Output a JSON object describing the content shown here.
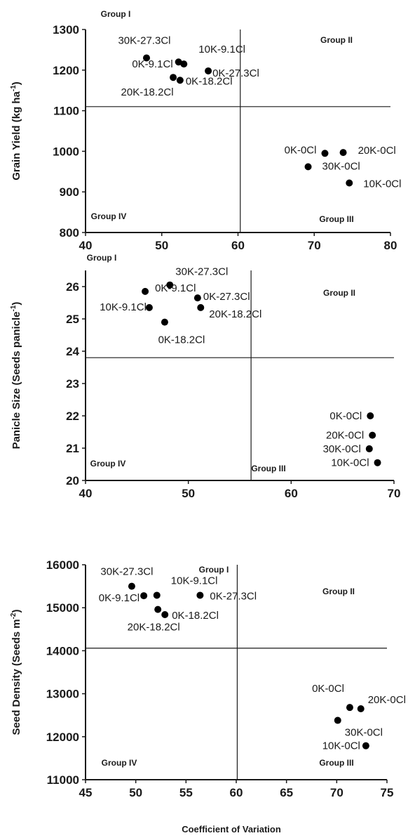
{
  "figure": {
    "xlabel": "Coefficient of Variation"
  },
  "chart_data": [
    {
      "type": "scatter",
      "title": "",
      "ylabel": "Grain Yield (kg ha",
      "ylabel_sup": "-1",
      "ylabel_tail": ")",
      "xlim": [
        40,
        80
      ],
      "xticks": [
        40,
        50,
        60,
        70,
        80
      ],
      "ylim": [
        800,
        1300
      ],
      "yticks": [
        800,
        900,
        1000,
        1100,
        1200,
        1300
      ],
      "ref_lines": {
        "x": 60.3,
        "y": 1110
      },
      "groups": [
        "Group I",
        "Group II",
        "Group III",
        "Group IV"
      ],
      "points": [
        {
          "label": "30K-27.3Cl",
          "x": 48.0,
          "y": 1230
        },
        {
          "label": "10K-9.1Cl",
          "x": 52.9,
          "y": 1215
        },
        {
          "label": "0K-9.1Cl",
          "x": 52.2,
          "y": 1220
        },
        {
          "label": "0K-27.3Cl",
          "x": 56.1,
          "y": 1198
        },
        {
          "label": "0K-18.2Cl",
          "x": 52.4,
          "y": 1175
        },
        {
          "label": "20K-18.2Cl",
          "x": 51.5,
          "y": 1182
        },
        {
          "label": "0K-0Cl",
          "x": 71.4,
          "y": 995
        },
        {
          "label": "20K-0Cl",
          "x": 73.8,
          "y": 997
        },
        {
          "label": "30K-0Cl",
          "x": 69.2,
          "y": 962
        },
        {
          "label": "10K-0Cl",
          "x": 74.6,
          "y": 922
        }
      ]
    },
    {
      "type": "scatter",
      "title": "",
      "ylabel": "Panicle Size (Seeds panicle",
      "ylabel_sup": "-1",
      "ylabel_tail": ")",
      "xlim": [
        40,
        70
      ],
      "xticks": [
        40,
        50,
        60,
        70
      ],
      "ylim": [
        20,
        26.5
      ],
      "yticks": [
        20,
        21,
        22,
        23,
        24,
        25,
        26
      ],
      "ref_lines": {
        "x": 56.1,
        "y": 23.8
      },
      "groups": [
        "Group I",
        "Group II",
        "Group III",
        "Group IV"
      ],
      "points": [
        {
          "label": "30K-27.3Cl",
          "x": 48.2,
          "y": 26.05
        },
        {
          "label": "0K-9.1Cl",
          "x": 45.8,
          "y": 25.85
        },
        {
          "label": "10K-9.1Cl",
          "x": 46.2,
          "y": 25.35
        },
        {
          "label": "0K-27.3Cl",
          "x": 50.9,
          "y": 25.65
        },
        {
          "label": "20K-18.2Cl",
          "x": 51.2,
          "y": 25.35
        },
        {
          "label": "0K-18.2Cl",
          "x": 47.7,
          "y": 24.9
        },
        {
          "label": "0K-0Cl",
          "x": 67.7,
          "y": 22.0
        },
        {
          "label": "20K-0Cl",
          "x": 67.9,
          "y": 21.4
        },
        {
          "label": "30K-0Cl",
          "x": 67.6,
          "y": 20.98
        },
        {
          "label": "10K-0Cl",
          "x": 68.4,
          "y": 20.55
        }
      ]
    },
    {
      "type": "scatter",
      "title": "",
      "ylabel": "Seed Density (Seeds m",
      "ylabel_sup": "-2",
      "ylabel_tail": ")",
      "xlim": [
        45,
        75
      ],
      "xticks": [
        45,
        50,
        55,
        60,
        65,
        70,
        75
      ],
      "ylim": [
        11000,
        16000
      ],
      "yticks": [
        11000,
        12000,
        13000,
        14000,
        15000,
        16000
      ],
      "ref_lines": {
        "x": 60.1,
        "y": 14060
      },
      "groups": [
        "Group I",
        "Group II",
        "Group III",
        "Group IV"
      ],
      "points": [
        {
          "label": "30K-27.3Cl",
          "x": 49.6,
          "y": 15500
        },
        {
          "label": "0K-9.1Cl",
          "x": 50.8,
          "y": 15280
        },
        {
          "label": "10K-9.1Cl",
          "x": 52.1,
          "y": 15290
        },
        {
          "label": "0K-27.3Cl",
          "x": 56.4,
          "y": 15290
        },
        {
          "label": "20K-18.2Cl",
          "x": 52.2,
          "y": 14960
        },
        {
          "label": "0K-18.2Cl",
          "x": 52.9,
          "y": 14840
        },
        {
          "label": "0K-0Cl",
          "x": 71.3,
          "y": 12680
        },
        {
          "label": "20K-0Cl",
          "x": 72.4,
          "y": 12650
        },
        {
          "label": "30K-0Cl",
          "x": 70.1,
          "y": 12380
        },
        {
          "label": "10K-0Cl",
          "x": 72.9,
          "y": 11790
        }
      ]
    }
  ]
}
